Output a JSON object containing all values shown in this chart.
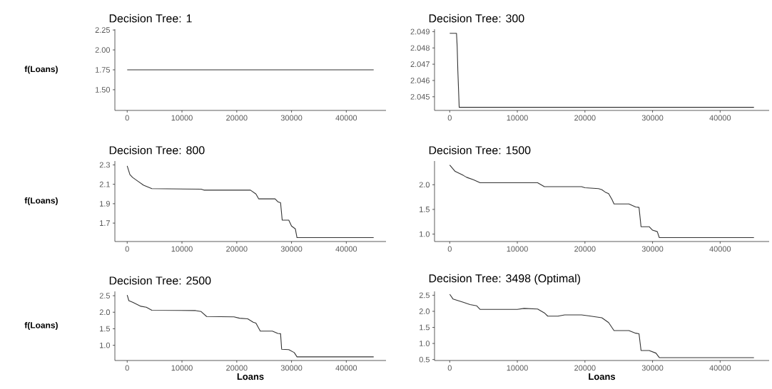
{
  "chart_data": [
    {
      "type": "line",
      "title": "Decision Tree: 1",
      "ylabel": "f(Loans)",
      "color": "#333333",
      "grid": false,
      "x": [
        0,
        45000
      ],
      "values": [
        1.75,
        1.75
      ],
      "xlim": [
        -2250,
        47250
      ],
      "ylim": [
        1.24,
        2.26
      ],
      "xticks": [
        0,
        10000,
        20000,
        30000,
        40000
      ],
      "yticks": [
        {
          "value": 1.5,
          "label": "1.50"
        },
        1.75,
        {
          "value": 2,
          "label": "2.00"
        },
        2.25
      ]
    },
    {
      "type": "line",
      "title": "Decision Tree: 300",
      "color": "#333333",
      "grid": false,
      "x": [
        0,
        1000,
        1100,
        1200,
        1400,
        45000
      ],
      "values": [
        2.0489,
        2.0489,
        2.0481,
        2.0466,
        2.04435,
        2.04435
      ],
      "xlim": [
        -2250,
        47250
      ],
      "ylim": [
        2.04416,
        2.04915
      ],
      "xticks": [
        0,
        10000,
        20000,
        30000,
        40000
      ],
      "yticks": [
        2.045,
        2.046,
        2.047,
        2.048,
        2.049
      ]
    },
    {
      "type": "line",
      "title": "Decision Tree: 800",
      "ylabel": "f(Loans)",
      "color": "#333333",
      "grid": false,
      "x": [
        0,
        500,
        1000,
        2000,
        3000,
        4500,
        13500,
        14000,
        22500,
        23500,
        24000,
        27000,
        27500,
        28000,
        28300,
        29500,
        30000,
        30700,
        31000,
        45000
      ],
      "values": [
        2.29,
        2.2,
        2.17,
        2.13,
        2.09,
        2.055,
        2.05,
        2.04,
        2.04,
        2.0,
        1.95,
        1.95,
        1.92,
        1.91,
        1.73,
        1.73,
        1.67,
        1.64,
        1.55,
        1.55
      ],
      "xlim": [
        -2250,
        47250
      ],
      "ylim": [
        1.51,
        2.34
      ],
      "xticks": [
        0,
        10000,
        20000,
        30000,
        40000
      ],
      "yticks": [
        1.7,
        1.9,
        2.1,
        2.3
      ]
    },
    {
      "type": "line",
      "title": "Decision Tree: 1500",
      "color": "#333333",
      "grid": false,
      "x": [
        0,
        800,
        2000,
        2500,
        3500,
        4500,
        13000,
        14000,
        19500,
        20000,
        22000,
        22500,
        23000,
        23500,
        24000,
        24300,
        26500,
        27500,
        28000,
        28300,
        29500,
        30000,
        30700,
        31000,
        45000
      ],
      "values": [
        2.4,
        2.27,
        2.19,
        2.15,
        2.1,
        2.04,
        2.04,
        1.96,
        1.96,
        1.94,
        1.92,
        1.9,
        1.85,
        1.82,
        1.7,
        1.61,
        1.61,
        1.55,
        1.54,
        1.15,
        1.15,
        1.08,
        1.05,
        0.93,
        0.93
      ],
      "xlim": [
        -2250,
        47250
      ],
      "ylim": [
        0.85,
        2.48
      ],
      "xticks": [
        0,
        10000,
        20000,
        30000,
        40000
      ],
      "yticks": [
        {
          "value": 1,
          "label": "1.0"
        },
        1.5,
        {
          "value": 2,
          "label": "2.0"
        }
      ]
    },
    {
      "type": "line",
      "title": "Decision Tree: 2500",
      "ylabel": "f(Loans)",
      "xlabel": "Loans",
      "color": "#333333",
      "grid": false,
      "x": [
        0,
        300,
        1000,
        2500,
        3500,
        4500,
        12500,
        13500,
        14500,
        19500,
        20500,
        22000,
        23000,
        23500,
        24300,
        26500,
        27500,
        28000,
        28200,
        29500,
        30500,
        31000,
        45000
      ],
      "values": [
        2.52,
        2.35,
        2.3,
        2.18,
        2.15,
        2.06,
        2.05,
        2.02,
        1.87,
        1.86,
        1.82,
        1.8,
        1.7,
        1.67,
        1.43,
        1.43,
        1.36,
        1.35,
        0.88,
        0.87,
        0.78,
        0.65,
        0.65
      ],
      "xlim": [
        -2250,
        47250
      ],
      "ylim": [
        0.54,
        2.63
      ],
      "xticks": [
        0,
        10000,
        20000,
        30000,
        40000
      ],
      "yticks": [
        {
          "value": 1,
          "label": "1.0"
        },
        1.5,
        {
          "value": 2,
          "label": "2.0"
        },
        2.5
      ]
    },
    {
      "type": "line",
      "title": "Decision Tree: 3498 (Optimal)",
      "xlabel": "Loans",
      "color": "#333333",
      "grid": false,
      "x": [
        0,
        500,
        2000,
        3000,
        4000,
        4500,
        10000,
        11000,
        13000,
        14000,
        14500,
        16000,
        17000,
        19500,
        20500,
        22500,
        23500,
        24300,
        26500,
        27500,
        28000,
        28300,
        29500,
        30500,
        31000,
        45000
      ],
      "values": [
        2.53,
        2.38,
        2.28,
        2.21,
        2.17,
        2.06,
        2.06,
        2.09,
        2.07,
        1.95,
        1.85,
        1.85,
        1.89,
        1.89,
        1.86,
        1.8,
        1.65,
        1.4,
        1.4,
        1.32,
        1.3,
        0.78,
        0.78,
        0.7,
        0.56,
        0.56
      ],
      "xlim": [
        -2250,
        47250
      ],
      "ylim": [
        0.47,
        2.62
      ],
      "xticks": [
        0,
        10000,
        20000,
        30000,
        40000
      ],
      "yticks": [
        0.5,
        {
          "value": 1,
          "label": "1.0"
        },
        1.5,
        {
          "value": 2,
          "label": "2.0"
        },
        2.5
      ]
    }
  ]
}
